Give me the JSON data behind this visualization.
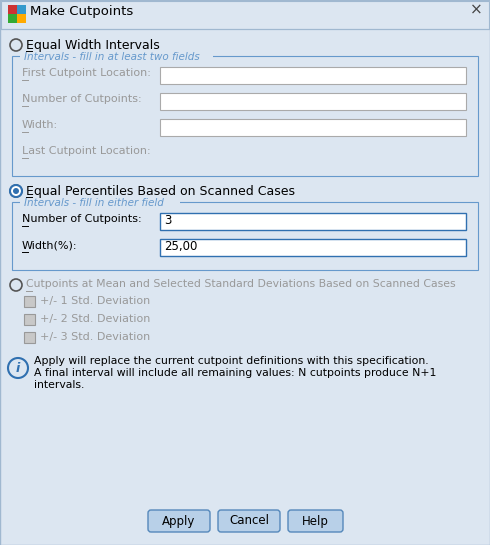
{
  "title": "Make Cutpoints",
  "bg_color": "#dce6f1",
  "section1_radio_label": "Equal Width Intervals",
  "section1_box_title": "Intervals - fill in at least two fields",
  "section1_fields": [
    {
      "label": "First Cutpoint Location:",
      "value": "",
      "has_box": true
    },
    {
      "label": "Number of Cutpoints:",
      "value": "",
      "has_box": true
    },
    {
      "label": "Width:",
      "value": "",
      "has_box": true
    },
    {
      "label": "Last Cutpoint Location:",
      "value": null,
      "has_box": false
    }
  ],
  "section2_radio_label": "Equal Percentiles Based on Scanned Cases",
  "section2_box_title": "Intervals - fill in either field",
  "section2_fields": [
    {
      "label": "Number of Cutpoints:",
      "value": "3"
    },
    {
      "label": "Width(%):",
      "value": "25,00"
    }
  ],
  "section3_radio_label": "Cutpoints at Mean and Selected Standard Deviations Based on Scanned Cases",
  "section3_checkboxes": [
    "+/- 1 Std. Deviation",
    "+/- 2 Std. Deviation",
    "+/- 3 Std. Deviation"
  ],
  "info_line1": "Apply will replace the current cutpoint definitions with this specification.",
  "info_line2": "A final interval will include all remaining values: N cutpoints produce N+1",
  "info_line3": "intervals.",
  "buttons": [
    "Apply",
    "Cancel",
    "Help"
  ],
  "field_bg": "#ffffff",
  "field_border_disabled": "#aaaaaa",
  "field_border_active": "#3070b0",
  "box_border_color": "#6699cc",
  "box_title_color": "#6699cc",
  "button_bg": "#b8d0e8",
  "button_border": "#5588bb",
  "text_color": "#000000",
  "disabled_text_color": "#999999",
  "radio_active_color": "#1a6496",
  "title_bg": "#dce6f1",
  "outer_border": "#a0b8d0"
}
